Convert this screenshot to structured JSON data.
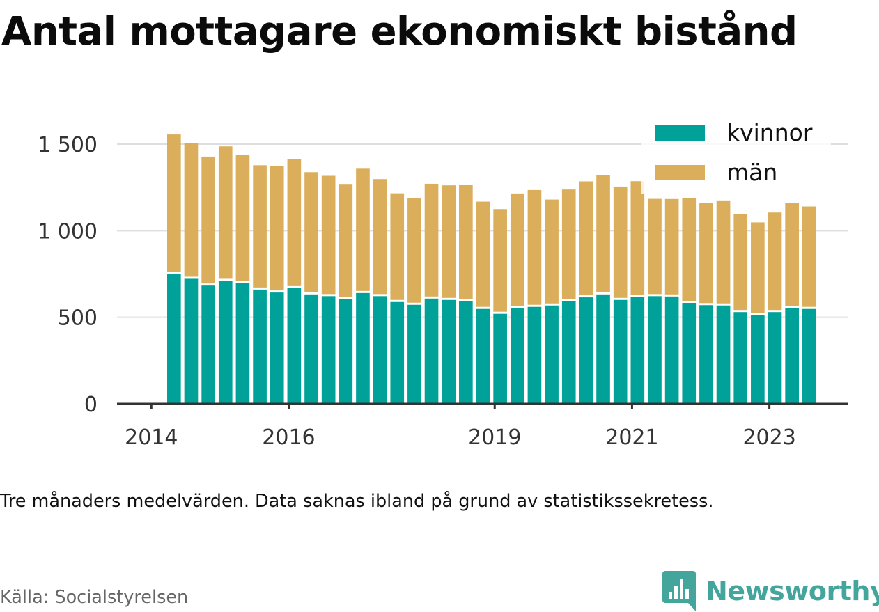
{
  "title": "Antal mottagare ekonomiskt bistånd",
  "note": "Tre månaders medelvärden. Data saknas ibland på grund av statistikssekretess.",
  "source": "Källa: Socialstyrelsen",
  "brand": {
    "name": "Newsworthy",
    "color": "#43a59c",
    "icon": "bar-chart-bookmark-icon"
  },
  "chart_data": {
    "type": "bar",
    "stacked": true,
    "title": "Antal mottagare ekonomiskt bistånd",
    "xlabel": "",
    "ylabel": "",
    "ylim": [
      0,
      1600
    ],
    "y_ticks": [
      {
        "value": 0,
        "label": "0"
      },
      {
        "value": 500,
        "label": "500"
      },
      {
        "value": 1000,
        "label": "1 000"
      },
      {
        "value": 1500,
        "label": "1 500"
      }
    ],
    "x_ticks": [
      {
        "value": 2014,
        "label": "2014"
      },
      {
        "value": 2016,
        "label": "2016"
      },
      {
        "value": 2019,
        "label": "2019"
      },
      {
        "value": 2021,
        "label": "2021"
      },
      {
        "value": 2023,
        "label": "2023"
      }
    ],
    "xlim": [
      2013.5,
      2024.15
    ],
    "x_period": 0.25,
    "grid": true,
    "legend": "top-right",
    "x": [
      2014.33,
      2014.58,
      2014.83,
      2015.08,
      2015.33,
      2015.58,
      2015.83,
      2016.08,
      2016.33,
      2016.58,
      2016.83,
      2017.08,
      2017.33,
      2017.58,
      2017.83,
      2018.08,
      2018.33,
      2018.58,
      2018.83,
      2019.08,
      2019.33,
      2019.58,
      2019.83,
      2020.08,
      2020.33,
      2020.58,
      2020.83,
      2021.08,
      2021.33,
      2021.58,
      2021.83,
      2022.08,
      2022.33,
      2022.58,
      2022.83,
      2023.08,
      2023.33,
      2023.58
    ],
    "series": [
      {
        "name": "kvinnor",
        "color": "#00a199",
        "values": [
          748,
          722,
          683,
          710,
          698,
          660,
          643,
          668,
          632,
          622,
          605,
          640,
          622,
          588,
          572,
          608,
          600,
          592,
          548,
          520,
          555,
          560,
          568,
          595,
          615,
          632,
          600,
          618,
          622,
          620,
          583,
          570,
          568,
          530,
          512,
          530,
          552,
          548
        ]
      },
      {
        "name": "män",
        "color": "#dbae5c",
        "values": [
          808,
          786,
          745,
          777,
          738,
          718,
          730,
          744,
          706,
          695,
          665,
          718,
          676,
          628,
          618,
          663,
          662,
          674,
          620,
          605,
          660,
          675,
          612,
          643,
          670,
          690,
          655,
          668,
          562,
          563,
          606,
          592,
          607,
          566,
          536,
          575,
          610,
          592
        ]
      }
    ]
  }
}
